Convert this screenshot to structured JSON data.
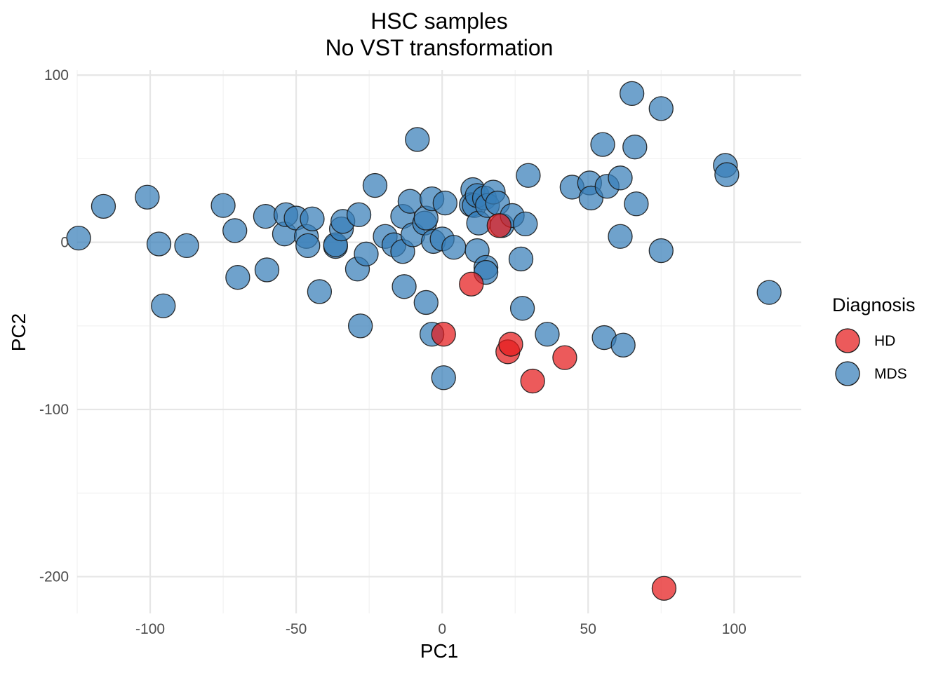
{
  "chart_data": {
    "type": "scatter",
    "title": "HSC samples",
    "subtitle": "No VST transformation",
    "xlabel": "PC1",
    "ylabel": "PC2",
    "xlim": [
      -125,
      123
    ],
    "ylim": [
      -222,
      103
    ],
    "x_ticks": [
      -100,
      -50,
      0,
      50,
      100
    ],
    "x_tick_labels": [
      "-100",
      "-50",
      "0",
      "50",
      "100"
    ],
    "y_ticks": [
      -200,
      -100,
      0,
      100
    ],
    "y_tick_labels": [
      "-200",
      "-100",
      "0",
      "100"
    ],
    "grid": true,
    "legend": {
      "title": "Diagnosis",
      "position": "right",
      "entries": [
        {
          "label": "HD",
          "color": "#E41A1C"
        },
        {
          "label": "MDS",
          "color": "#377EB8"
        }
      ]
    },
    "series": [
      {
        "name": "MDS",
        "color": "#377EB8",
        "points": [
          [
            -124.5,
            2.5
          ],
          [
            -116,
            21.5
          ],
          [
            -101,
            27
          ],
          [
            -97,
            -1
          ],
          [
            -95.5,
            -38
          ],
          [
            -87.5,
            -2
          ],
          [
            -75,
            22
          ],
          [
            -71,
            7
          ],
          [
            -70,
            -21
          ],
          [
            -60.5,
            15.5
          ],
          [
            -60,
            -16.5
          ],
          [
            -54,
            5
          ],
          [
            -53.5,
            16.5
          ],
          [
            -50,
            14.5
          ],
          [
            -46.5,
            3.5
          ],
          [
            -46,
            -2
          ],
          [
            -44.5,
            14
          ],
          [
            -42,
            -29.5
          ],
          [
            -36.5,
            -2.5
          ],
          [
            -36.5,
            -1.5
          ],
          [
            -34.5,
            8
          ],
          [
            -34,
            12.5
          ],
          [
            -29,
            -16
          ],
          [
            -28.5,
            16.5
          ],
          [
            -28,
            -50
          ],
          [
            -26,
            -7
          ],
          [
            -23,
            34
          ],
          [
            -19.5,
            3.5
          ],
          [
            -16.5,
            -1.5
          ],
          [
            -13.5,
            -5.5
          ],
          [
            -13.5,
            15.5
          ],
          [
            -13,
            -26.5
          ],
          [
            -11,
            24.5
          ],
          [
            -10,
            4.5
          ],
          [
            -8.5,
            61.5
          ],
          [
            -6,
            11.5
          ],
          [
            -5.5,
            14.5
          ],
          [
            -5.5,
            -36
          ],
          [
            -3.5,
            26
          ],
          [
            -3.5,
            -55
          ],
          [
            -3,
            0.5
          ],
          [
            0,
            2
          ],
          [
            1,
            23.5
          ],
          [
            0.5,
            -81
          ],
          [
            4,
            -3
          ],
          [
            10.5,
            31.5
          ],
          [
            10,
            22.5
          ],
          [
            11,
            22
          ],
          [
            12,
            -5
          ],
          [
            12,
            28
          ],
          [
            12.5,
            11.5
          ],
          [
            14.5,
            26.5
          ],
          [
            15,
            -15
          ],
          [
            15,
            -18
          ],
          [
            15.5,
            22
          ],
          [
            17.5,
            30
          ],
          [
            19,
            23.5
          ],
          [
            20.5,
            10
          ],
          [
            24,
            16
          ],
          [
            27,
            -10
          ],
          [
            27.5,
            -39.5
          ],
          [
            28.5,
            11
          ],
          [
            29.5,
            40
          ],
          [
            36,
            -55
          ],
          [
            44.5,
            33
          ],
          [
            50.5,
            35.5
          ],
          [
            51,
            26.5
          ],
          [
            55,
            58.5
          ],
          [
            55.5,
            -57
          ],
          [
            56.5,
            33.5
          ],
          [
            61,
            38.5
          ],
          [
            61,
            3.5
          ],
          [
            62,
            -61.5
          ],
          [
            65,
            89
          ],
          [
            66,
            57
          ],
          [
            66.5,
            23
          ],
          [
            75,
            80
          ],
          [
            75,
            -5
          ],
          [
            97,
            46
          ],
          [
            97.5,
            40.5
          ],
          [
            112,
            -30
          ]
        ]
      },
      {
        "name": "HD",
        "color": "#E41A1C",
        "points": [
          [
            0.5,
            -55
          ],
          [
            10,
            -25
          ],
          [
            19.5,
            10
          ],
          [
            22.5,
            -65.5
          ],
          [
            23.5,
            -61
          ],
          [
            31,
            -83
          ],
          [
            42,
            -69
          ],
          [
            76,
            -207
          ]
        ]
      }
    ]
  }
}
